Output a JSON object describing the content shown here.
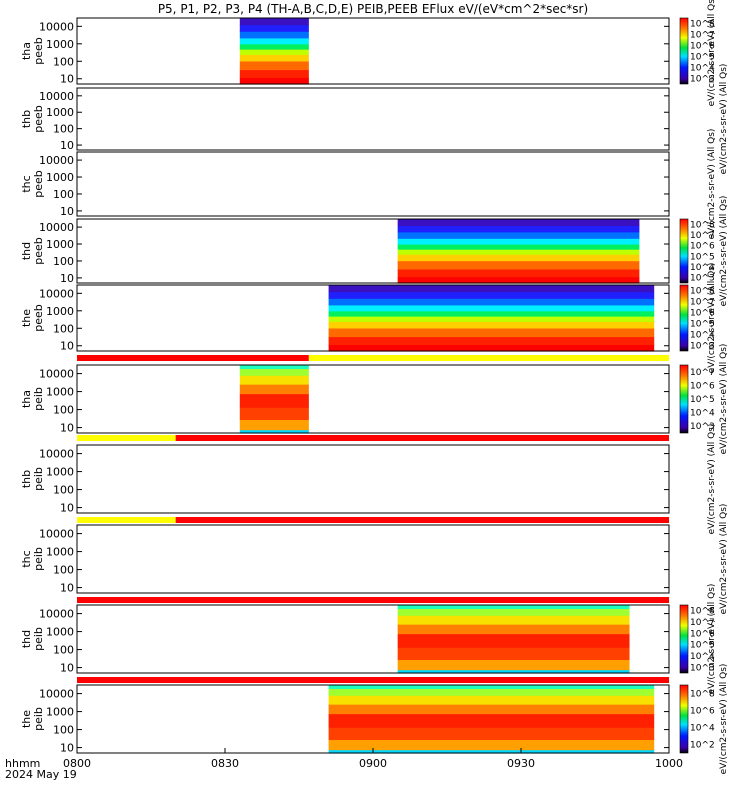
{
  "title": "P5, P1, P2, P3, P4 (TH-A,B,C,D,E) PEIB,PEEB EFlux eV/(eV*cm^2*sec*sr)",
  "colors": {
    "red_bar": "#ff0000",
    "yellow_bar": "#ffff00",
    "background": "#ffffff"
  },
  "chart_data": {
    "type": "heatmap",
    "x_unit": "time (hhmm)",
    "xlim": [
      "0800",
      "1000"
    ],
    "xticks": [
      "0800",
      "0830",
      "0900",
      "0930",
      "1000"
    ],
    "x_label_top": "hhmm",
    "x_label_bottom": "2024 May 19",
    "y_scale": "log",
    "colormap": "rainbow",
    "panels": [
      {
        "probe": "tha",
        "product": "peeb",
        "ylabel": "tha\npeeb",
        "yticks": [
          "10",
          "100",
          "1000",
          "10000"
        ],
        "ylim": [
          5,
          30000
        ],
        "data_windows": [
          [
            "0833",
            "0847"
          ]
        ],
        "colorbar": {
          "present": true,
          "scale": "log",
          "ticks": [
            "10^3",
            "10^4",
            "10^5",
            "10^6",
            "10^7",
            "10^8"
          ],
          "label": "eV/(cm2-s-sr-eV) (All Qs)"
        }
      },
      {
        "probe": "thb",
        "product": "peeb",
        "ylabel": "thb\npeeb",
        "yticks": [
          "10",
          "100",
          "1000",
          "10000"
        ],
        "ylim": [
          5,
          30000
        ],
        "data_windows": [],
        "colorbar": {
          "present": false,
          "label": "eV/(cm2-s-sr-eV) (All Qs)"
        }
      },
      {
        "probe": "thc",
        "product": "peeb",
        "ylabel": "thc\npeeb",
        "yticks": [
          "10",
          "100",
          "1000",
          "10000"
        ],
        "ylim": [
          5,
          30000
        ],
        "data_windows": [],
        "colorbar": {
          "present": false,
          "label": "eV/(cm2-s-sr-eV) (All Qs)"
        }
      },
      {
        "probe": "thd",
        "product": "peeb",
        "ylabel": "thd\npeeb",
        "yticks": [
          "10",
          "100",
          "1000",
          "10000"
        ],
        "ylim": [
          5,
          30000
        ],
        "data_windows": [
          [
            "0905",
            "0954"
          ]
        ],
        "colorbar": {
          "present": true,
          "scale": "log",
          "ticks": [
            "10^3",
            "10^4",
            "10^5",
            "10^6",
            "10^7",
            "10^8"
          ],
          "label": "eV/(cm2-s-sr-eV) (All Qs)"
        }
      },
      {
        "probe": "the",
        "product": "peeb",
        "ylabel": "the\npeeb",
        "yticks": [
          "10",
          "100",
          "1000",
          "10000"
        ],
        "ylim": [
          5,
          30000
        ],
        "data_windows": [
          [
            "0851",
            "0957"
          ]
        ],
        "colorbar": {
          "present": true,
          "scale": "log",
          "ticks": [
            "10^3",
            "10^4",
            "10^5",
            "10^6",
            "10^7",
            "10^8"
          ],
          "label": "eV/(cm2-s-sr-eV) (All Qs)"
        }
      },
      {
        "probe": "tha",
        "product": "peib",
        "ylabel": "tha\npeib",
        "yticks": [
          "10",
          "100",
          "1000",
          "10000"
        ],
        "ylim": [
          5,
          30000
        ],
        "data_windows": [
          [
            "0833",
            "0847"
          ]
        ],
        "status_bar": [
          {
            "from": "0800",
            "to": "0847",
            "color": "red"
          },
          {
            "from": "0847",
            "to": "1000",
            "color": "yellow"
          }
        ],
        "colorbar": {
          "present": true,
          "scale": "log",
          "ticks": [
            "10^3",
            "10^4",
            "10^5",
            "10^6",
            "10^7"
          ],
          "label": "eV/(cm2-s-sr-eV) (All Qs)"
        }
      },
      {
        "probe": "thb",
        "product": "peib",
        "ylabel": "thb\npeib",
        "yticks": [
          "10",
          "100",
          "1000",
          "10000"
        ],
        "ylim": [
          5,
          30000
        ],
        "data_windows": [],
        "status_bar": [
          {
            "from": "0800",
            "to": "0820",
            "color": "yellow"
          },
          {
            "from": "0820",
            "to": "1000",
            "color": "red"
          }
        ],
        "colorbar": {
          "present": false,
          "label": "eV/(cm2-s-sr-eV) (All Qs)"
        }
      },
      {
        "probe": "thc",
        "product": "peib",
        "ylabel": "thc\npeib",
        "yticks": [
          "10",
          "100",
          "1000",
          "10000"
        ],
        "ylim": [
          5,
          30000
        ],
        "data_windows": [],
        "status_bar": [
          {
            "from": "0800",
            "to": "0820",
            "color": "yellow"
          },
          {
            "from": "0820",
            "to": "1000",
            "color": "red"
          }
        ],
        "colorbar": {
          "present": false,
          "label": "eV/(cm2-s-sr-eV) (All Qs)"
        }
      },
      {
        "probe": "thd",
        "product": "peib",
        "ylabel": "thd\npeib",
        "yticks": [
          "10",
          "100",
          "1000",
          "10000"
        ],
        "ylim": [
          5,
          30000
        ],
        "data_windows": [
          [
            "0905",
            "0952"
          ]
        ],
        "status_bar": [
          {
            "from": "0800",
            "to": "1000",
            "color": "red"
          }
        ],
        "colorbar": {
          "present": true,
          "scale": "log",
          "ticks": [
            "10^3",
            "10^4",
            "10^5",
            "10^6",
            "10^7",
            "10^8"
          ],
          "label": "eV/(cm2-s-sr-eV) (All Qs)"
        }
      },
      {
        "probe": "the",
        "product": "peib",
        "ylabel": "the\npeib",
        "yticks": [
          "10",
          "100",
          "1000",
          "10000"
        ],
        "ylim": [
          5,
          30000
        ],
        "data_windows": [
          [
            "0851",
            "0957"
          ]
        ],
        "status_bar": [
          {
            "from": "0800",
            "to": "1000",
            "color": "red"
          }
        ],
        "colorbar": {
          "present": true,
          "scale": "log",
          "ticks": [
            "10^2",
            "10^4",
            "10^6",
            "10^8"
          ],
          "label": "eV/(cm2-s-sr-eV) (All Qs)"
        }
      }
    ]
  }
}
